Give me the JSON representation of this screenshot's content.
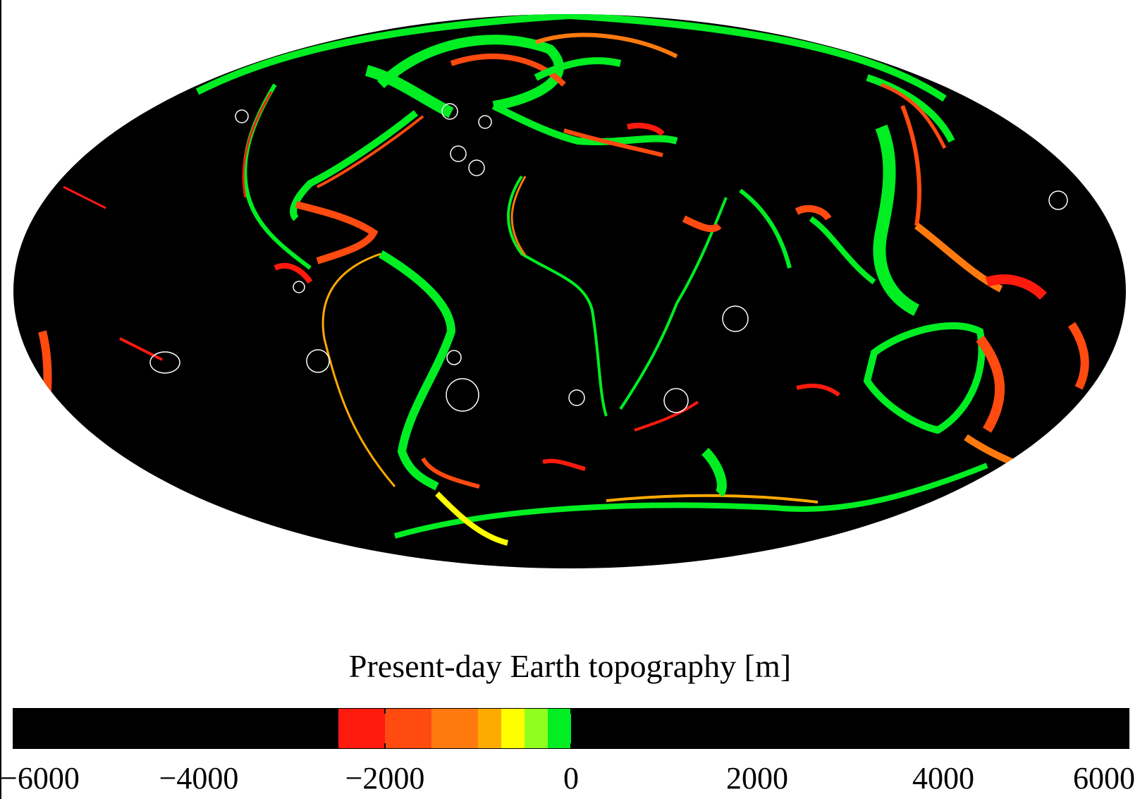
{
  "map": {
    "projection": "Mollweide",
    "ocean_color": "#000000",
    "highlight_marker": "white-circle"
  },
  "colorbar": {
    "title": "Present-day Earth topography [m]",
    "range": [
      -6000,
      6000
    ],
    "tick_values": [
      -6000,
      -4000,
      -2000,
      0,
      2000,
      4000,
      6000
    ],
    "tick_labels": [
      "−6000",
      "−4000",
      "−2000",
      "0",
      "2000",
      "4000",
      "6000"
    ],
    "bands": [
      {
        "from": -6000,
        "to": -2500,
        "color": "#000000"
      },
      {
        "from": -2500,
        "to": -2000,
        "color": "#ff1a0e"
      },
      {
        "from": -2000,
        "to": -1500,
        "color": "#ff4a10"
      },
      {
        "from": -1500,
        "to": -1000,
        "color": "#ff7a0e"
      },
      {
        "from": -1000,
        "to": -750,
        "color": "#ffaa00"
      },
      {
        "from": -750,
        "to": -500,
        "color": "#ffff00"
      },
      {
        "from": -500,
        "to": -250,
        "color": "#90ff20"
      },
      {
        "from": -250,
        "to": 0,
        "color": "#00ee22"
      },
      {
        "from": 0,
        "to": 6000,
        "color": "#000000"
      }
    ]
  }
}
